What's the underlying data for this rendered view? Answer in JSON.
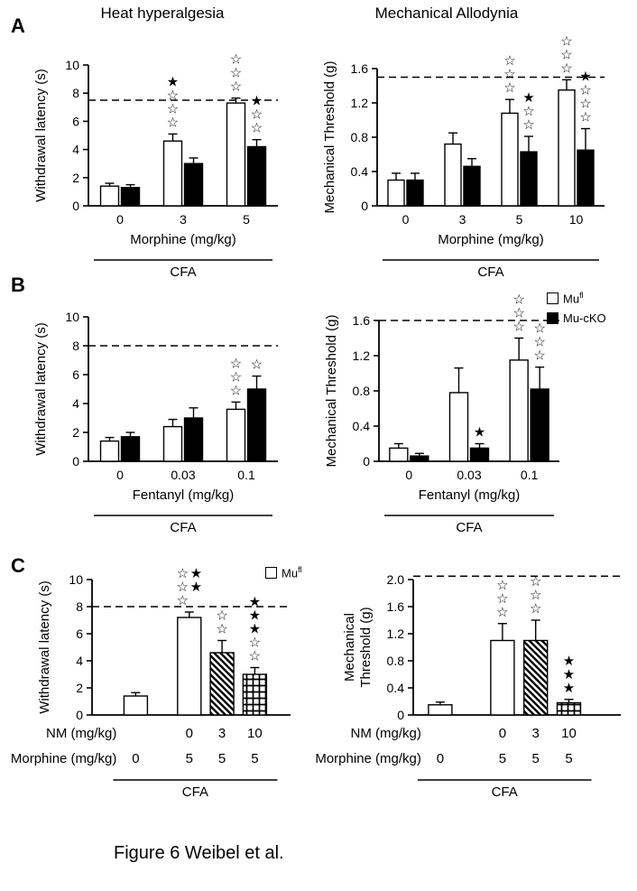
{
  "titles": {
    "left": "Heat hyperalgesia",
    "right": "Mechanical Allodynia"
  },
  "panels": [
    {
      "letter": "A"
    },
    {
      "letter": "B"
    },
    {
      "letter": "C"
    }
  ],
  "legend": {
    "mufl_base": "Mu",
    "mufl_sup": "fl",
    "mucko_label": "Mu-cKO"
  },
  "caption": "Figure 6 Weibel et al.",
  "colors": {
    "bar_outline": "#000000",
    "mufl_fill": "#ffffff",
    "mucko_fill": "#000000",
    "background": "#ffffff"
  },
  "chart_data": [
    {
      "id": "A-left",
      "type": "bar",
      "panel": "A",
      "title": "Heat hyperalgesia",
      "ylabel": "Withdrawal latency (s)",
      "xlabel": "Morphine (mg/kg)",
      "cfa_label": "CFA",
      "ylim": [
        0,
        10
      ],
      "yticks": [
        "0",
        "2",
        "4",
        "6",
        "8",
        "10"
      ],
      "dashed_line": 7.5,
      "categories": [
        "0",
        "3",
        "5"
      ],
      "series": [
        {
          "name": "Mufl",
          "style": "white",
          "values": [
            1.4,
            4.6,
            7.3
          ],
          "errors": [
            0.2,
            0.5,
            0.35
          ],
          "significance": [
            [],
            [
              "★☆☆☆"
            ],
            [
              "☆☆☆"
            ]
          ]
        },
        {
          "name": "Mu-cKO",
          "style": "black",
          "values": [
            1.3,
            3.0,
            4.2
          ],
          "errors": [
            0.2,
            0.4,
            0.5
          ],
          "significance": [
            [],
            [],
            [
              "★☆☆"
            ]
          ]
        }
      ]
    },
    {
      "id": "A-right",
      "type": "bar",
      "panel": "A",
      "title": "Mechanical Allodynia",
      "ylabel": "Mechanical Threshold (g)",
      "xlabel": "Morphine (mg/kg)",
      "cfa_label": "CFA",
      "ylim": [
        0,
        1.6
      ],
      "yticks": [
        "0",
        "0.4",
        "0.8",
        "1.2",
        "1.6"
      ],
      "dashed_line": 1.5,
      "categories": [
        "0",
        "3",
        "5",
        "10"
      ],
      "series": [
        {
          "name": "Mufl",
          "style": "white",
          "values": [
            0.3,
            0.72,
            1.08,
            1.35
          ],
          "errors": [
            0.08,
            0.13,
            0.16,
            0.12
          ],
          "significance": [
            [],
            [],
            [
              "☆☆☆"
            ],
            [
              "☆☆☆"
            ]
          ]
        },
        {
          "name": "Mu-cKO",
          "style": "black",
          "values": [
            0.3,
            0.46,
            0.63,
            0.65
          ],
          "errors": [
            0.08,
            0.09,
            0.18,
            0.25
          ],
          "significance": [
            [],
            [],
            [
              "★☆☆"
            ],
            [
              "★☆☆☆"
            ]
          ]
        }
      ]
    },
    {
      "id": "B-left",
      "type": "bar",
      "panel": "B",
      "ylabel": "Withdrawal latency (s)",
      "xlabel": "Fentanyl (mg/kg)",
      "cfa_label": "CFA",
      "ylim": [
        0,
        10
      ],
      "yticks": [
        "0",
        "2",
        "4",
        "6",
        "8",
        "10"
      ],
      "dashed_line": 8,
      "categories": [
        "0",
        "0.03",
        "0.1"
      ],
      "series": [
        {
          "name": "Mufl",
          "style": "white",
          "values": [
            1.4,
            2.4,
            3.6
          ],
          "errors": [
            0.25,
            0.5,
            0.5
          ],
          "significance": [
            [],
            [],
            [
              "☆☆☆"
            ]
          ]
        },
        {
          "name": "Mu-cKO",
          "style": "black",
          "values": [
            1.7,
            3.0,
            5.0
          ],
          "errors": [
            0.3,
            0.7,
            0.9
          ],
          "significance": [
            [],
            [],
            [
              "☆"
            ]
          ]
        }
      ]
    },
    {
      "id": "B-right",
      "type": "bar",
      "panel": "B",
      "ylabel": "Mechanical Threshold (g)",
      "xlabel": "Fentanyl (mg/kg)",
      "cfa_label": "CFA",
      "ylim": [
        0,
        1.6
      ],
      "yticks": [
        "0",
        "0.4",
        "0.8",
        "1.2",
        "1.6"
      ],
      "dashed_line": 1.6,
      "categories": [
        "0",
        "0.03",
        "0.1"
      ],
      "series": [
        {
          "name": "Mufl",
          "style": "white",
          "values": [
            0.15,
            0.78,
            1.15
          ],
          "errors": [
            0.05,
            0.28,
            0.25
          ],
          "significance": [
            [],
            [],
            [
              "☆☆☆"
            ]
          ]
        },
        {
          "name": "Mu-cKO",
          "style": "black",
          "values": [
            0.06,
            0.15,
            0.82
          ],
          "errors": [
            0.03,
            0.05,
            0.25
          ],
          "significance": [
            [],
            [
              "★"
            ],
            [
              "☆☆☆"
            ]
          ]
        }
      ]
    },
    {
      "id": "C-left",
      "type": "bar",
      "panel": "C",
      "ylabel": "Withdrawal latency (s)",
      "cfa_label": "CFA",
      "ylim": [
        0,
        10
      ],
      "yticks": [
        "0",
        "2",
        "4",
        "6",
        "8",
        "10"
      ],
      "dashed_line": 8,
      "bars": [
        {
          "label_nm": "",
          "label_morphine": "0",
          "style": "white",
          "value": 1.4,
          "error": 0.25,
          "significance": []
        },
        {
          "label_nm": "0",
          "label_morphine": "5",
          "style": "white",
          "value": 7.2,
          "error": 0.4,
          "significance": [
            "☆☆☆",
            "★★"
          ]
        },
        {
          "label_nm": "3",
          "label_morphine": "5",
          "style": "diag",
          "value": 4.6,
          "error": 0.9,
          "significance": [
            "☆☆"
          ]
        },
        {
          "label_nm": "10",
          "label_morphine": "5",
          "style": "cross",
          "value": 3.0,
          "error": 0.5,
          "significance": [
            "★★★☆☆"
          ]
        }
      ],
      "xrows": [
        {
          "label": "NM (mg/kg)",
          "key": "label_nm"
        },
        {
          "label": "Morphine (mg/kg)",
          "key": "label_morphine"
        }
      ]
    },
    {
      "id": "C-right",
      "type": "bar",
      "panel": "C",
      "ylabel": "Mechanical\nThreshold (g)",
      "cfa_label": "CFA",
      "ylim": [
        0,
        2
      ],
      "yticks": [
        "0",
        "0.4",
        "0.8",
        "1.2",
        "1.6",
        "2.0"
      ],
      "dashed_line": 2.05,
      "bars": [
        {
          "label_nm": "",
          "label_morphine": "0",
          "style": "white",
          "value": 0.15,
          "error": 0.04,
          "significance": []
        },
        {
          "label_nm": "0",
          "label_morphine": "5",
          "style": "white",
          "value": 1.1,
          "error": 0.25,
          "significance": [
            "☆☆☆"
          ]
        },
        {
          "label_nm": "3",
          "label_morphine": "5",
          "style": "diag",
          "value": 1.1,
          "error": 0.3,
          "significance": [
            "☆☆☆"
          ]
        },
        {
          "label_nm": "10",
          "label_morphine": "5",
          "style": "cross",
          "value": 0.18,
          "error": 0.05,
          "significance": [
            "★★★"
          ]
        }
      ],
      "xrows": [
        {
          "label": "NM (mg/kg)",
          "key": "label_nm"
        },
        {
          "label": "Morphine (mg/kg)",
          "key": "label_morphine"
        }
      ]
    }
  ]
}
